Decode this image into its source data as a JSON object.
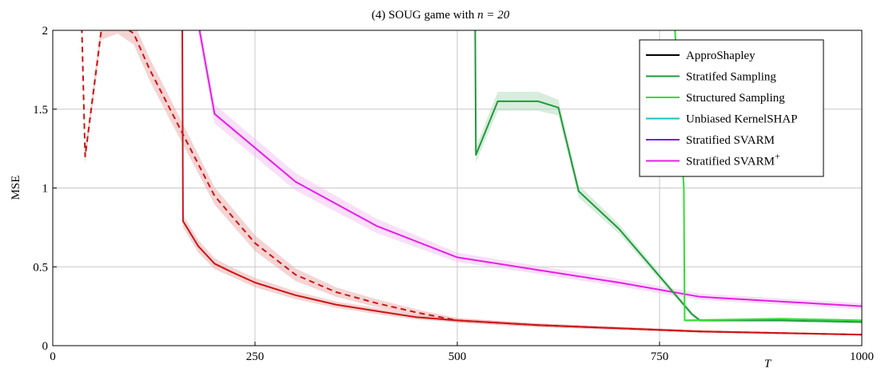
{
  "chart_data": {
    "type": "line",
    "title": "(4) SOUG game with n = 20",
    "title_prefix": "(4) SOUG game with ",
    "title_math": "n = 20",
    "xlabel": "T",
    "ylabel": "MSE",
    "xlim": [
      0,
      1000
    ],
    "ylim": [
      0,
      2
    ],
    "xticks": [
      0,
      250,
      500,
      750,
      1000
    ],
    "yticks": [
      0,
      0.5,
      1,
      1.5,
      2
    ],
    "xtick_labels": [
      "0",
      "250",
      "500",
      "750",
      "1000"
    ],
    "ytick_labels": [
      "0",
      "0.5",
      "1",
      "1.5",
      "2"
    ],
    "grid": true,
    "legend_position": "top-right",
    "legend": [
      {
        "label": "ApproShapley",
        "color": "#000000"
      },
      {
        "label": "Stratifed Sampling",
        "color": "#1f9a3a"
      },
      {
        "label": "Structured Sampling",
        "color": "#33dd33"
      },
      {
        "label": "Unbiased KernelSHAP",
        "color": "#17c0c0"
      },
      {
        "label": "Stratified SVARM",
        "color": "#7a1fd6"
      },
      {
        "label": "Stratified SVARM+",
        "color": "#e61ee6"
      }
    ],
    "series": [
      {
        "color": "#cc1414",
        "style": "solid",
        "band_color": "#e8a0a0",
        "x": [
          160,
          161,
          180,
          200,
          220,
          250,
          300,
          350,
          400,
          450,
          500,
          600,
          700,
          800,
          900,
          1000
        ],
        "y": [
          2.2,
          0.79,
          0.63,
          0.52,
          0.47,
          0.4,
          0.32,
          0.26,
          0.22,
          0.18,
          0.16,
          0.13,
          0.11,
          0.09,
          0.08,
          0.07
        ],
        "band": [
          0.03,
          0.04,
          0.04,
          0.035,
          0.03,
          0.03,
          0.025,
          0.02,
          0.02,
          0.015,
          0.012,
          0.01,
          0.008,
          0.007,
          0.006,
          0.005
        ]
      },
      {
        "color": "#cc1414",
        "style": "dashed",
        "band_color": "#e8a0a0",
        "x": [
          35,
          40,
          60,
          80,
          100,
          120,
          140,
          160,
          180,
          200,
          250,
          300,
          350,
          400,
          450,
          500,
          600,
          700,
          800,
          900,
          1000
        ],
        "y": [
          2.2,
          1.2,
          2.0,
          2.05,
          1.98,
          1.75,
          1.55,
          1.35,
          1.15,
          0.95,
          0.65,
          0.45,
          0.34,
          0.27,
          0.21,
          0.16,
          0.13,
          0.11,
          0.09,
          0.08,
          0.07
        ],
        "band": [
          0.05,
          0.05,
          0.06,
          0.07,
          0.07,
          0.07,
          0.07,
          0.065,
          0.06,
          0.055,
          0.05,
          0.04,
          0.03,
          0.025,
          0.02,
          0.015,
          0.012,
          0.01,
          0.008,
          0.006,
          0.005
        ]
      },
      {
        "color": "#e61ee6",
        "style": "solid",
        "band_color": "#f2b8f2",
        "x": [
          178,
          200,
          300,
          400,
          500,
          600,
          700,
          800,
          900,
          1000
        ],
        "y": [
          2.1,
          1.47,
          1.04,
          0.76,
          0.56,
          0.48,
          0.4,
          0.31,
          0.28,
          0.25
        ],
        "band": [
          0.06,
          0.06,
          0.055,
          0.045,
          0.03,
          0.025,
          0.025,
          0.02,
          0.02,
          0.02
        ]
      },
      {
        "color": "#1f9a3a",
        "style": "solid",
        "band_color": "#a8d8b4",
        "x": [
          522,
          523,
          550,
          600,
          625,
          650,
          700,
          790,
          800,
          900,
          1000
        ],
        "y": [
          2.1,
          1.21,
          1.55,
          1.55,
          1.51,
          0.98,
          0.74,
          0.2,
          0.16,
          0.16,
          0.15
        ],
        "band": [
          0.04,
          0.05,
          0.06,
          0.06,
          0.05,
          0.04,
          0.03,
          0.015,
          0.01,
          0.01,
          0.01
        ]
      },
      {
        "color": "#33dd33",
        "style": "solid",
        "band_color": "#b8f0b8",
        "x": [
          768,
          780,
          781,
          900,
          1000
        ],
        "y": [
          2.1,
          1.0,
          0.16,
          0.17,
          0.16
        ],
        "band": [
          0.02,
          0.02,
          0.01,
          0.01,
          0.01
        ]
      }
    ]
  }
}
